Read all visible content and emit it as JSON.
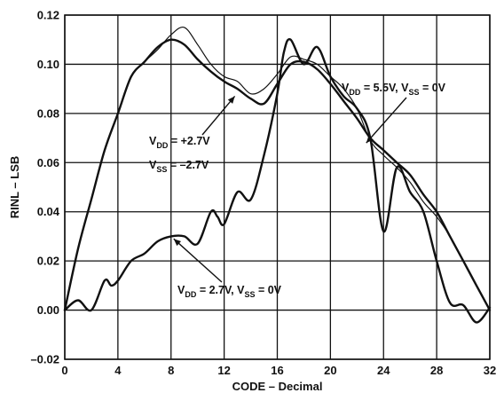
{
  "chart_data": {
    "type": "line",
    "title": "",
    "xlabel": "CODE – Decimal",
    "ylabel": "RINL – LSB",
    "xlim": [
      0,
      32
    ],
    "ylim": [
      -0.02,
      0.12
    ],
    "x_ticks": [
      "0",
      "4",
      "8",
      "12",
      "16",
      "20",
      "24",
      "28",
      "32"
    ],
    "y_ticks": [
      "–0.02",
      "0.00",
      "0.02",
      "0.04",
      "0.06",
      "0.08",
      "0.10",
      "0.12"
    ],
    "grid": true,
    "annotations": [
      {
        "id": "a1",
        "parts": [
          [
            "V",
            "text"
          ],
          [
            "DD",
            "sub"
          ],
          [
            " = +2.7V",
            "text"
          ]
        ]
      },
      {
        "id": "a2",
        "parts": [
          [
            "V",
            "text"
          ],
          [
            "SS",
            "sub"
          ],
          [
            " = –2.7V",
            "text"
          ]
        ]
      },
      {
        "id": "a3",
        "parts": [
          [
            "V",
            "text"
          ],
          [
            "DD",
            "sub"
          ],
          [
            " = 5.5V, V",
            "text"
          ],
          [
            "SS",
            "sub"
          ],
          [
            " = 0V",
            "text"
          ]
        ]
      },
      {
        "id": "a4",
        "parts": [
          [
            "V",
            "text"
          ],
          [
            "DD",
            "sub"
          ],
          [
            " = 2.7V, V",
            "text"
          ],
          [
            "SS",
            "sub"
          ],
          [
            " = 0V",
            "text"
          ]
        ]
      }
    ],
    "series": [
      {
        "color": "#111111",
        "stroke_style": "thick",
        "points": [
          [
            0,
            0
          ],
          [
            1,
            0.025
          ],
          [
            2,
            0.045
          ],
          [
            3,
            0.065
          ],
          [
            4,
            0.08
          ],
          [
            5,
            0.095
          ],
          [
            6,
            0.101
          ],
          [
            7,
            0.107
          ],
          [
            8,
            0.11
          ],
          [
            9,
            0.108
          ],
          [
            10,
            0.102
          ],
          [
            11,
            0.097
          ],
          [
            12,
            0.093
          ],
          [
            13,
            0.09
          ],
          [
            14,
            0.086
          ],
          [
            15,
            0.084
          ],
          [
            16,
            0.092
          ],
          [
            17,
            0.1
          ],
          [
            18,
            0.101
          ],
          [
            19,
            0.098
          ],
          [
            20,
            0.092
          ],
          [
            21,
            0.085
          ],
          [
            22,
            0.078
          ],
          [
            23,
            0.07
          ],
          [
            24,
            0.065
          ],
          [
            25,
            0.06
          ],
          [
            26,
            0.055
          ],
          [
            27,
            0.047
          ],
          [
            28,
            0.04
          ],
          [
            29,
            0.03
          ],
          [
            30,
            0.02
          ],
          [
            31,
            0.01
          ],
          [
            32,
            0
          ]
        ]
      },
      {
        "color": "#111111",
        "stroke_style": "thin",
        "points": [
          [
            0,
            0
          ],
          [
            1,
            0.025
          ],
          [
            2,
            0.045
          ],
          [
            3,
            0.065
          ],
          [
            4,
            0.08
          ],
          [
            5,
            0.095
          ],
          [
            6,
            0.101
          ],
          [
            7,
            0.106
          ],
          [
            8,
            0.112
          ],
          [
            9,
            0.115
          ],
          [
            10,
            0.108
          ],
          [
            11,
            0.1
          ],
          [
            12,
            0.095
          ],
          [
            13,
            0.093
          ],
          [
            14,
            0.088
          ],
          [
            15,
            0.09
          ],
          [
            16,
            0.096
          ],
          [
            17,
            0.103
          ],
          [
            18,
            0.102
          ],
          [
            19,
            0.1
          ],
          [
            20,
            0.095
          ],
          [
            21,
            0.09
          ],
          [
            22,
            0.082
          ],
          [
            23,
            0.069
          ],
          [
            24,
            0.063
          ],
          [
            25,
            0.058
          ],
          [
            26,
            0.052
          ],
          [
            27,
            0.044
          ],
          [
            28,
            0.038
          ],
          [
            29,
            0.03
          ],
          [
            30,
            0.02
          ],
          [
            31,
            0.01
          ],
          [
            32,
            0
          ]
        ]
      },
      {
        "color": "#111111",
        "stroke_style": "thick",
        "points": [
          [
            0,
            0
          ],
          [
            1,
            0.004
          ],
          [
            2,
            0
          ],
          [
            3,
            0.012
          ],
          [
            3.5,
            0.01
          ],
          [
            4,
            0.012
          ],
          [
            5,
            0.02
          ],
          [
            6,
            0.023
          ],
          [
            7,
            0.028
          ],
          [
            8,
            0.03
          ],
          [
            9,
            0.03
          ],
          [
            10,
            0.027
          ],
          [
            11,
            0.04
          ],
          [
            11.5,
            0.038
          ],
          [
            12,
            0.035
          ],
          [
            13,
            0.048
          ],
          [
            14,
            0.045
          ],
          [
            15,
            0.063
          ],
          [
            16,
            0.088
          ],
          [
            16.5,
            0.105
          ],
          [
            17,
            0.11
          ],
          [
            18,
            0.1
          ],
          [
            19,
            0.107
          ],
          [
            20,
            0.095
          ],
          [
            21,
            0.087
          ],
          [
            22,
            0.082
          ],
          [
            23,
            0.07
          ],
          [
            24,
            0.032
          ],
          [
            25,
            0.058
          ],
          [
            26,
            0.048
          ],
          [
            27,
            0.04
          ],
          [
            28,
            0.02
          ],
          [
            29,
            0.003
          ],
          [
            30,
            0.002
          ],
          [
            31,
            -0.005
          ],
          [
            32,
            0.001
          ]
        ]
      }
    ]
  }
}
